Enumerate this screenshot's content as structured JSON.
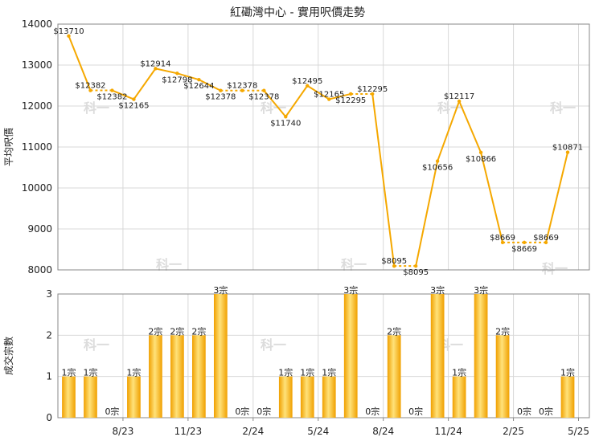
{
  "chart_data": [
    {
      "type": "line",
      "title": "紅磡灣中心 - 實用呎價走勢",
      "ylabel": "平均呎價",
      "ylim": [
        8000,
        14000
      ],
      "yticks": [
        "14000",
        "13000",
        "12000",
        "11000",
        "10000",
        "9000",
        "8000"
      ],
      "grid": true,
      "series": [
        {
          "values": [
            13710,
            12382,
            12382,
            12165,
            12914,
            12798,
            12644,
            12378,
            12378,
            12378,
            11740,
            12495,
            12165,
            12295,
            12295,
            8095,
            8095,
            10656,
            12117,
            10866,
            8669,
            8669,
            8669,
            10871
          ],
          "labels": [
            "$13710",
            "$12382",
            "$12382",
            "$12165",
            "$12914",
            "$12798",
            "$12644",
            "$12378",
            "$12378",
            "$12378",
            "$11740",
            "$12495",
            "$12165",
            "$12295",
            "$12295",
            "$8095",
            "$8095",
            "$10656",
            "$12117",
            "$10866",
            "$8669",
            "$8669",
            "$8669",
            "$10871"
          ]
        }
      ]
    },
    {
      "type": "bar",
      "ylabel": "成交宗數",
      "ylim": [
        0,
        3
      ],
      "yticks": [
        "3",
        "2",
        "1",
        "0"
      ],
      "x_tick_labels": [
        "8/23",
        "11/23",
        "2/24",
        "5/24",
        "8/24",
        "11/24",
        "2/25",
        "5/25"
      ],
      "values": [
        1,
        1,
        0,
        1,
        2,
        2,
        2,
        3,
        0,
        0,
        1,
        1,
        1,
        3,
        0,
        2,
        0,
        3,
        1,
        3,
        2,
        0,
        0,
        1
      ],
      "labels": [
        "1宗",
        "1宗",
        "0宗",
        "1宗",
        "2宗",
        "2宗",
        "2宗",
        "3宗",
        "0宗",
        "0宗",
        "1宗",
        "1宗",
        "1宗",
        "3宗",
        "0宗",
        "2宗",
        "0宗",
        "3宗",
        "1宗",
        "3宗",
        "2宗",
        "0宗",
        "0宗",
        "1宗"
      ]
    }
  ],
  "colors": {
    "line": "#f5a800",
    "bar_light": "#ffe27a",
    "bar_dark": "#f0a000",
    "grid": "#d8d8d8",
    "axis": "#888888"
  }
}
